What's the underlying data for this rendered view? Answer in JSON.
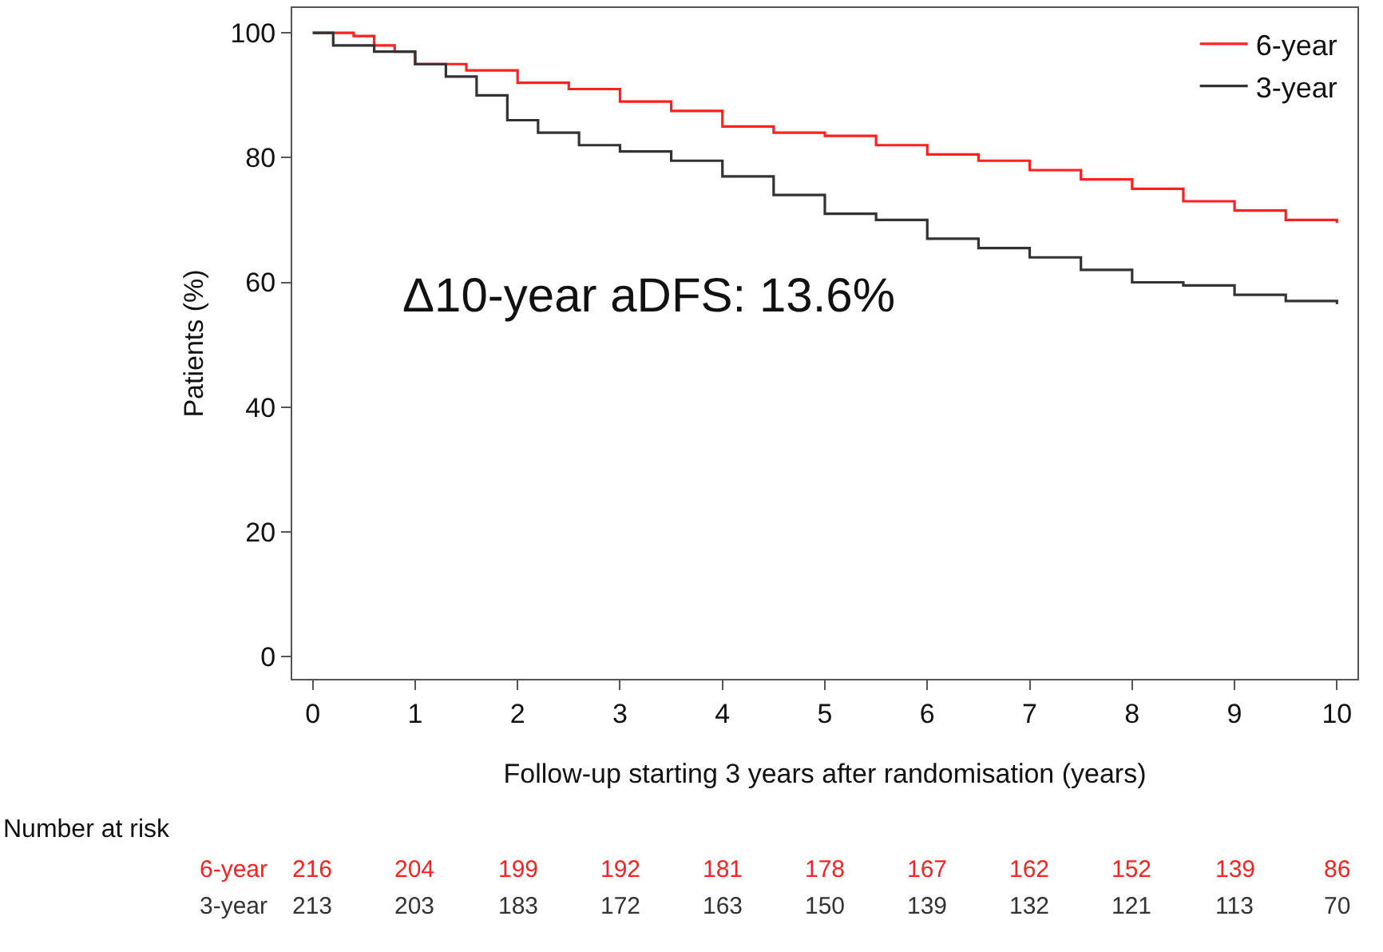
{
  "chart_data": {
    "type": "step",
    "xlabel": "Follow-up starting 3 years after randomisation (years)",
    "ylabel": "Patients (%)",
    "xlim": [
      -0.2,
      10.2
    ],
    "xticks": [
      0,
      1,
      2,
      3,
      4,
      5,
      6,
      7,
      8,
      9,
      10
    ],
    "ylim": [
      -3.6,
      104
    ],
    "yticks": [
      0,
      20,
      40,
      60,
      80,
      100
    ],
    "legend": "top right",
    "marker": "none",
    "line_style": "solid",
    "series": [
      {
        "name": "6-year",
        "color": "#ff2020",
        "x": [
          0,
          0.4,
          0.6,
          0.8,
          1.0,
          1.5,
          2.0,
          2.5,
          3.0,
          3.5,
          4.0,
          4.5,
          5.0,
          5.5,
          6.0,
          6.5,
          7.0,
          7.5,
          8.0,
          8.5,
          9.0,
          9.5,
          10.0
        ],
        "values": [
          100,
          99.5,
          98,
          97,
          95,
          94,
          92,
          91,
          89,
          87.5,
          85,
          84,
          83.5,
          82,
          80.5,
          79.5,
          78,
          76.5,
          75,
          73,
          71.5,
          70,
          69.5
        ]
      },
      {
        "name": "3-year",
        "color": "#333333",
        "x": [
          0,
          0.2,
          0.6,
          1.0,
          1.3,
          1.6,
          1.9,
          2.2,
          2.6,
          3.0,
          3.5,
          4.0,
          4.5,
          5.0,
          5.5,
          6.0,
          6.5,
          7.0,
          7.5,
          8.0,
          8.5,
          9.0,
          9.5,
          10.0
        ],
        "values": [
          100,
          98,
          97,
          95,
          93,
          90,
          86,
          84,
          82,
          81,
          79.5,
          77,
          74,
          71,
          70,
          67,
          65.5,
          64,
          62,
          60,
          59.5,
          58,
          57,
          56.5
        ]
      }
    ],
    "annotations": [
      "Δ10-year aDFS: 13.6%",
      "Number at risk",
      "6-year",
      "216",
      "204",
      "199",
      "192",
      "181",
      "178",
      "167",
      "162",
      "152",
      "139",
      "86",
      "3-year",
      "213",
      "203",
      "183",
      "172",
      "163",
      "150",
      "139",
      "132",
      "121",
      "113",
      "70"
    ]
  }
}
